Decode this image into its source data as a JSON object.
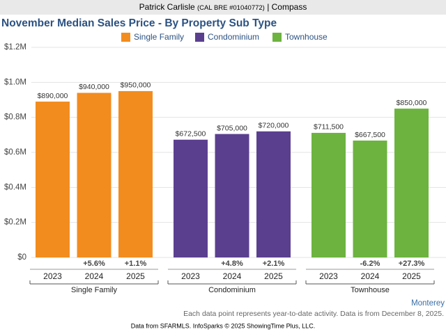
{
  "header": {
    "agent": "Patrick Carlisle",
    "license": "(CAL BRE #01040772)",
    "brokerage": "| Compass"
  },
  "chart_data": {
    "type": "bar",
    "title": "November Median Sales Price - By Property Sub Type",
    "categories": [
      "Single Family",
      "Condominium",
      "Townhouse"
    ],
    "years": [
      "2023",
      "2024",
      "2025"
    ],
    "series": [
      {
        "name": "Single Family",
        "color": "#f28c1e",
        "values": [
          890000,
          940000,
          950000
        ],
        "value_labels": [
          "$890,000",
          "$940,000",
          "$950,000"
        ],
        "changes": [
          null,
          "+5.6%",
          "+1.1%"
        ]
      },
      {
        "name": "Condominium",
        "color": "#5b3f8f",
        "values": [
          672500,
          705000,
          720000
        ],
        "value_labels": [
          "$672,500",
          "$705,000",
          "$720,000"
        ],
        "changes": [
          null,
          "+4.8%",
          "+2.1%"
        ]
      },
      {
        "name": "Townhouse",
        "color": "#6db33f",
        "values": [
          711500,
          667500,
          850000
        ],
        "value_labels": [
          "$711,500",
          "$667,500",
          "$850,000"
        ],
        "changes": [
          null,
          "-6.2%",
          "+27.3%"
        ]
      }
    ],
    "ylim": [
      0,
      1200000
    ],
    "yticks": [
      {
        "value": 0,
        "label": "$0"
      },
      {
        "value": 200000,
        "label": "$0.2M"
      },
      {
        "value": 400000,
        "label": "$0.4M"
      },
      {
        "value": 600000,
        "label": "$0.6M"
      },
      {
        "value": 800000,
        "label": "$0.8M"
      },
      {
        "value": 1000000,
        "label": "$1.0M"
      },
      {
        "value": 1200000,
        "label": "$1.2M"
      }
    ],
    "grid": true
  },
  "footer": {
    "region": "Monterey",
    "note": "Each data point represents year-to-date activity. Data is from December 8, 2025.",
    "source": "Data from SFARMLS. InfoSparks © 2025 ShowingTime Plus, LLC."
  }
}
